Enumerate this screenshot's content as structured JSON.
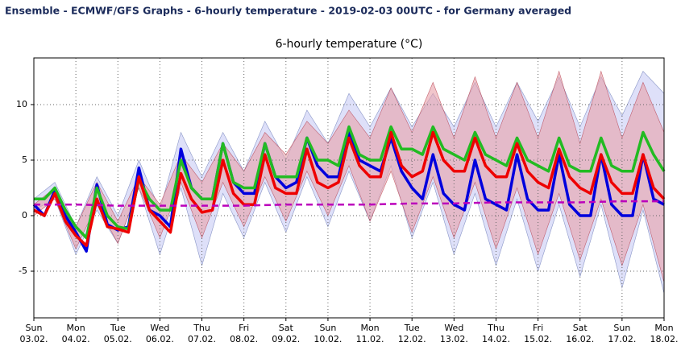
{
  "chart_data": {
    "type": "line",
    "header": "Ensemble - ECMWF/GFS Graphs - 6-hourly temperature - 2019-02-03 00UTC - for Germany averaged",
    "title": "6-hourly temperature (°C)",
    "xlim": [
      0,
      15
    ],
    "ylim": [
      -9.2,
      14.2
    ],
    "yticks": [
      -5,
      0,
      5,
      10
    ],
    "grid": true,
    "xticks": [
      {
        "value": 0,
        "label": "Sun"
      },
      {
        "value": 1,
        "label": "Mon"
      },
      {
        "value": 2,
        "label": "Tue"
      },
      {
        "value": 3,
        "label": "Wed"
      },
      {
        "value": 4,
        "label": "Thu"
      },
      {
        "value": 5,
        "label": "Fri"
      },
      {
        "value": 6,
        "label": "Sat"
      },
      {
        "value": 7,
        "label": "Sun"
      },
      {
        "value": 8,
        "label": "Mon"
      },
      {
        "value": 9,
        "label": "Tue"
      },
      {
        "value": 10,
        "label": "Wed"
      },
      {
        "value": 11,
        "label": "Thu"
      },
      {
        "value": 12,
        "label": "Fri"
      },
      {
        "value": 13,
        "label": "Sat"
      },
      {
        "value": 14,
        "label": "Sun"
      },
      {
        "value": 15,
        "label": "Mon"
      }
    ],
    "xtick_dates": [
      "03.02.",
      "04.02.",
      "05.02.",
      "06.02.",
      "07.02.",
      "08.02.",
      "09.02.",
      "10.02.",
      "11.02.",
      "12.02.",
      "13.02.",
      "14.02.",
      "15.02.",
      "16.02.",
      "17.02.",
      "18.02."
    ],
    "bands": [
      {
        "color": "#c8ccf5",
        "x": [
          0,
          0.5,
          1,
          1.5,
          2,
          2.5,
          3,
          3.5,
          4,
          4.5,
          5,
          5.5,
          6,
          6.5,
          7,
          7.5,
          8,
          8.5,
          9,
          9.5,
          10,
          10.5,
          11,
          11.5,
          12,
          12.5,
          13,
          13.5,
          14,
          14.5,
          15
        ],
        "lower": [
          0.5,
          1.5,
          -3.5,
          0.5,
          -2.5,
          2.5,
          -3.5,
          2.5,
          -4.5,
          2.0,
          -2.0,
          3.0,
          -1.5,
          3.5,
          -1.0,
          4.0,
          -0.5,
          4.5,
          -2.0,
          3.0,
          -3.5,
          2.0,
          -4.5,
          1.5,
          -5.0,
          1.0,
          -5.5,
          1.0,
          -6.5,
          0.5,
          -7.0
        ],
        "upper": [
          1.5,
          3.0,
          -1.0,
          3.5,
          0.0,
          5.0,
          0.5,
          7.5,
          3.5,
          7.5,
          4.0,
          8.5,
          5.0,
          9.5,
          6.5,
          11.0,
          8.0,
          11.5,
          8.0,
          11.0,
          8.0,
          12.0,
          8.0,
          12.0,
          8.5,
          12.5,
          8.0,
          12.5,
          9.0,
          13.0,
          11.0
        ]
      },
      {
        "color": "#e8a0a8",
        "x": [
          0,
          0.5,
          1,
          1.5,
          2,
          2.5,
          3,
          3.5,
          4,
          4.5,
          5,
          5.5,
          6,
          6.5,
          7,
          7.5,
          8,
          8.5,
          9,
          9.5,
          10,
          10.5,
          11,
          11.5,
          12,
          12.5,
          13,
          13.5,
          14,
          14.5,
          15
        ],
        "lower": [
          0.0,
          1.5,
          -3.0,
          1.0,
          -2.5,
          2.5,
          -2.0,
          3.0,
          -2.0,
          3.0,
          -1.0,
          3.5,
          -0.5,
          4.0,
          0.0,
          4.5,
          -0.5,
          4.0,
          -1.5,
          3.5,
          -2.0,
          3.0,
          -3.0,
          2.5,
          -3.5,
          2.0,
          -4.0,
          1.5,
          -4.5,
          1.0,
          -6.0
        ],
        "upper": [
          1.0,
          2.5,
          -1.0,
          3.0,
          -0.5,
          3.5,
          1.0,
          5.5,
          3.0,
          6.5,
          4.0,
          7.5,
          5.5,
          8.5,
          6.5,
          9.5,
          7.0,
          11.5,
          7.5,
          12.0,
          7.0,
          12.5,
          7.0,
          12.0,
          7.0,
          13.0,
          6.5,
          13.0,
          7.0,
          12.0,
          7.5
        ]
      }
    ],
    "x": [
      0,
      0.25,
      0.5,
      0.75,
      1,
      1.25,
      1.5,
      1.75,
      2,
      2.25,
      2.5,
      2.75,
      3,
      3.25,
      3.5,
      3.75,
      4,
      4.25,
      4.5,
      4.75,
      5,
      5.25,
      5.5,
      5.75,
      6,
      6.25,
      6.5,
      6.75,
      7,
      7.25,
      7.5,
      7.75,
      8,
      8.25,
      8.5,
      8.75,
      9,
      9.25,
      9.5,
      9.75,
      10,
      10.25,
      10.5,
      10.75,
      11,
      11.25,
      11.5,
      11.75,
      12,
      12.25,
      12.5,
      12.75,
      13,
      13.25,
      13.5,
      13.75,
      14,
      14.25,
      14.5,
      14.75,
      15
    ],
    "series": [
      {
        "color": "#0000dd",
        "values": [
          1.0,
          0.0,
          2.3,
          0.0,
          -1.5,
          -3.2,
          2.8,
          -0.8,
          -1.3,
          -1.0,
          4.3,
          0.5,
          0.0,
          -1.0,
          6.0,
          2.5,
          1.5,
          1.5,
          6.5,
          3.0,
          2.0,
          2.0,
          6.5,
          3.5,
          2.5,
          3.0,
          7.0,
          4.5,
          3.5,
          3.5,
          7.5,
          5.0,
          4.5,
          4.0,
          7.0,
          4.0,
          2.5,
          1.5,
          5.5,
          2.0,
          1.0,
          0.5,
          5.0,
          1.5,
          1.0,
          0.5,
          5.5,
          1.5,
          0.5,
          0.5,
          5.5,
          1.0,
          0.0,
          0.0,
          5.5,
          1.0,
          0.0,
          0.0,
          5.5,
          1.5,
          1.0
        ]
      },
      {
        "color": "#22bb22",
        "values": [
          1.5,
          1.5,
          2.5,
          0.5,
          -1.0,
          -2.0,
          2.5,
          0.0,
          -1.0,
          -1.2,
          3.3,
          1.5,
          0.5,
          0.5,
          5.0,
          2.5,
          1.5,
          1.5,
          6.5,
          3.0,
          2.5,
          2.5,
          6.5,
          3.5,
          3.5,
          3.5,
          7.0,
          5.0,
          5.0,
          4.5,
          8.0,
          5.5,
          5.0,
          5.0,
          8.0,
          6.0,
          6.0,
          5.5,
          8.0,
          6.0,
          5.5,
          5.0,
          7.5,
          5.5,
          5.0,
          4.5,
          7.0,
          5.0,
          4.5,
          4.0,
          7.0,
          4.5,
          4.0,
          4.0,
          7.0,
          4.5,
          4.0,
          4.0,
          7.5,
          5.5,
          4.0
        ]
      },
      {
        "color": "#ee0000",
        "values": [
          0.5,
          0.0,
          2.0,
          -0.5,
          -1.8,
          -2.7,
          1.5,
          -1.0,
          -1.2,
          -1.5,
          3.5,
          0.5,
          -0.5,
          -1.5,
          3.8,
          1.5,
          0.3,
          0.5,
          5.0,
          2.0,
          1.0,
          1.0,
          5.5,
          2.5,
          2.0,
          2.0,
          6.0,
          3.0,
          2.5,
          3.0,
          7.0,
          4.5,
          3.5,
          3.5,
          7.5,
          4.5,
          3.5,
          4.0,
          7.5,
          5.0,
          4.0,
          4.0,
          7.0,
          4.5,
          3.5,
          3.5,
          6.5,
          4.0,
          3.0,
          2.5,
          6.0,
          3.5,
          2.5,
          2.0,
          5.5,
          3.0,
          2.0,
          2.0,
          5.5,
          2.5,
          1.5
        ]
      },
      {
        "color": "#bb00bb",
        "dashed": true,
        "x": [
          0,
          1,
          2,
          3,
          4,
          5,
          6,
          7,
          8,
          9,
          10,
          11,
          12,
          13,
          14,
          15
        ],
        "values": [
          1.0,
          1.0,
          0.9,
          0.9,
          0.9,
          0.9,
          1.0,
          1.0,
          1.0,
          1.1,
          1.1,
          1.2,
          1.2,
          1.2,
          1.3,
          1.3
        ]
      }
    ]
  }
}
